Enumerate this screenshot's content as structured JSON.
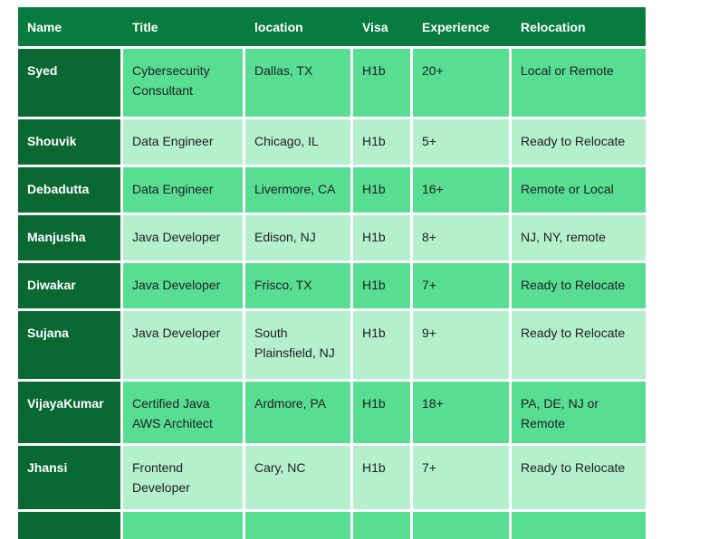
{
  "table": {
    "headers": [
      "Name",
      "Title",
      "location",
      "Visa",
      "Experience",
      "Relocation"
    ],
    "rows": [
      {
        "name": "Syed",
        "title": "Cybersecurity\nConsultant",
        "location": "Dallas, TX",
        "visa": "H1b",
        "experience": "20+",
        "relocation": "Local or Remote"
      },
      {
        "name": "Shouvik",
        "title": "Data Engineer",
        "location": "Chicago, IL",
        "visa": "H1b",
        "experience": "5+",
        "relocation": "Ready to Relocate"
      },
      {
        "name": "Debadutta",
        "title": "Data Engineer",
        "location": "Livermore, CA",
        "visa": "H1b",
        "experience": "16+",
        "relocation": "Remote or Local"
      },
      {
        "name": "Manjusha",
        "title": "Java Developer",
        "location": "Edison, NJ",
        "visa": "H1b",
        "experience": "8+",
        "relocation": "NJ, NY, remote"
      },
      {
        "name": "Diwakar",
        "title": "Java Developer",
        "location": "Frisco, TX",
        "visa": "H1b",
        "experience": "7+",
        "relocation": "Ready to Relocate"
      },
      {
        "name": "Sujana",
        "title": "Java Developer",
        "location": "South\nPlainsfield, NJ",
        "visa": "H1b",
        "experience": "9+",
        "relocation": "Ready to Relocate"
      },
      {
        "name": "VijayaKumar",
        "title": "Certified Java\nAWS Architect",
        "location": "Ardmore, PA",
        "visa": "H1b",
        "experience": "18+",
        "relocation": "PA, DE, NJ or\nRemote"
      },
      {
        "name": "Jhansi",
        "title": "Frontend\nDeveloper",
        "location": "Cary, NC",
        "visa": "H1b",
        "experience": "7+",
        "relocation": "Ready to Relocate"
      }
    ],
    "colors": {
      "header_bg": "#087C3E",
      "name_column_bg": "#0A6832",
      "row_green": "#57DE93",
      "row_light_green": "#B4EFCE",
      "header_text": "#FFFFFF",
      "body_text": "#212121"
    }
  }
}
